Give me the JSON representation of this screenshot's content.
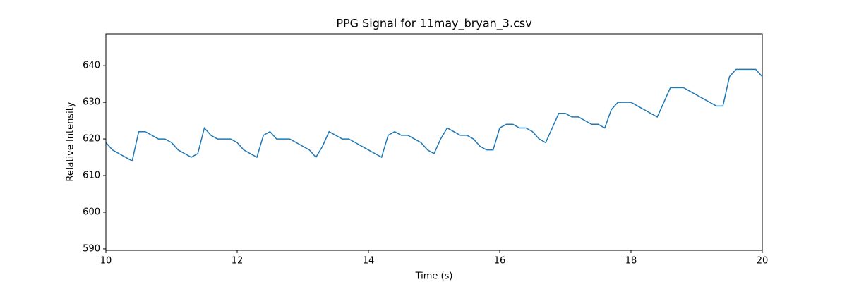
{
  "chart_data": {
    "type": "line",
    "title": "PPG Signal for 11may_bryan_3.csv",
    "x_label": "Time (s)",
    "y_label": "Relative Intensity",
    "xlim": [
      10,
      20
    ],
    "ylim": [
      589.6,
      648.7
    ],
    "xticks": [
      10,
      12,
      14,
      16,
      18,
      20
    ],
    "yticks": [
      590,
      600,
      610,
      620,
      630,
      640
    ],
    "grid": false,
    "x": [
      10.0,
      10.1,
      10.2,
      10.3,
      10.4,
      10.5,
      10.6,
      10.7,
      10.8,
      10.9,
      11.0,
      11.1,
      11.2,
      11.3,
      11.4,
      11.5,
      11.6,
      11.7,
      11.8,
      11.9,
      12.0,
      12.1,
      12.2,
      12.3,
      12.4,
      12.5,
      12.6,
      12.7,
      12.8,
      12.9,
      13.0,
      13.1,
      13.2,
      13.3,
      13.4,
      13.5,
      13.6,
      13.7,
      13.8,
      13.9,
      14.0,
      14.1,
      14.2,
      14.3,
      14.4,
      14.5,
      14.6,
      14.7,
      14.8,
      14.9,
      15.0,
      15.1,
      15.2,
      15.3,
      15.4,
      15.5,
      15.6,
      15.7,
      15.8,
      15.9,
      16.0,
      16.1,
      16.2,
      16.3,
      16.4,
      16.5,
      16.6,
      16.7,
      16.8,
      16.9,
      17.0,
      17.1,
      17.2,
      17.3,
      17.4,
      17.5,
      17.6,
      17.7,
      17.8,
      17.9,
      18.0,
      18.1,
      18.2,
      18.3,
      18.4,
      18.5,
      18.6,
      18.7,
      18.8,
      18.9,
      19.0,
      19.1,
      19.2,
      19.3,
      19.4,
      19.5,
      19.6,
      19.7,
      19.8,
      19.9,
      20.0
    ],
    "series": [
      {
        "color": "#1f77b4",
        "values": [
          619,
          617,
          616,
          615,
          614,
          622,
          622,
          621,
          620,
          620,
          619,
          617,
          616,
          615,
          616,
          623,
          621,
          620,
          620,
          620,
          619,
          617,
          616,
          615,
          621,
          622,
          620,
          620,
          620,
          619,
          618,
          617,
          615,
          618,
          622,
          621,
          620,
          620,
          619,
          618,
          617,
          616,
          615,
          621,
          622,
          621,
          621,
          620,
          619,
          617,
          616,
          620,
          623,
          622,
          621,
          621,
          620,
          618,
          617,
          617,
          623,
          624,
          624,
          623,
          623,
          622,
          620,
          619,
          623,
          627,
          627,
          626,
          626,
          625,
          624,
          624,
          623,
          628,
          630,
          630,
          630,
          629,
          628,
          627,
          626,
          630,
          634,
          634,
          634,
          633,
          632,
          631,
          630,
          629,
          629,
          637,
          639,
          639,
          639,
          639,
          637
        ]
      }
    ]
  }
}
